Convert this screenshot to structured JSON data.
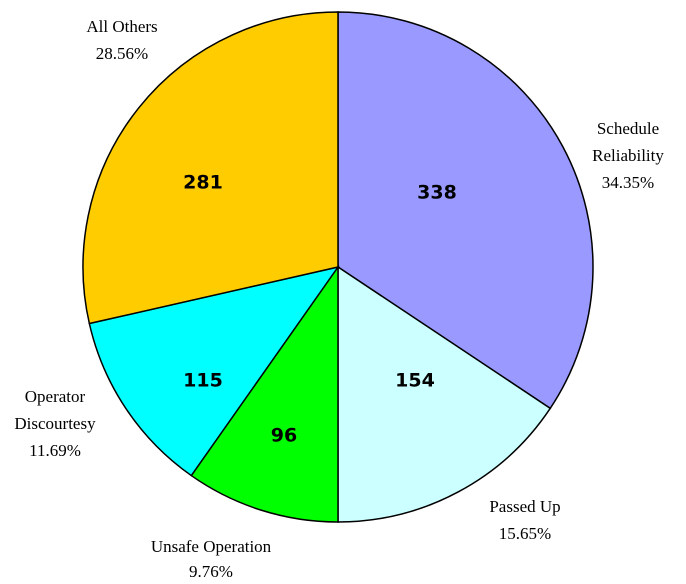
{
  "chart_data": {
    "type": "pie",
    "categories": [
      "Schedule Reliability",
      "Passed Up",
      "Unsafe Operation",
      "Operator Discourtesy",
      "All Others"
    ],
    "values": [
      338,
      154,
      96,
      115,
      281
    ],
    "percent_labels": [
      "34.35%",
      "15.65%",
      "9.76%",
      "11.69%",
      "28.56%"
    ],
    "colors": [
      "#9999ff",
      "#ccffff",
      "#00ff00",
      "#00ffff",
      "#ffcc00"
    ]
  }
}
